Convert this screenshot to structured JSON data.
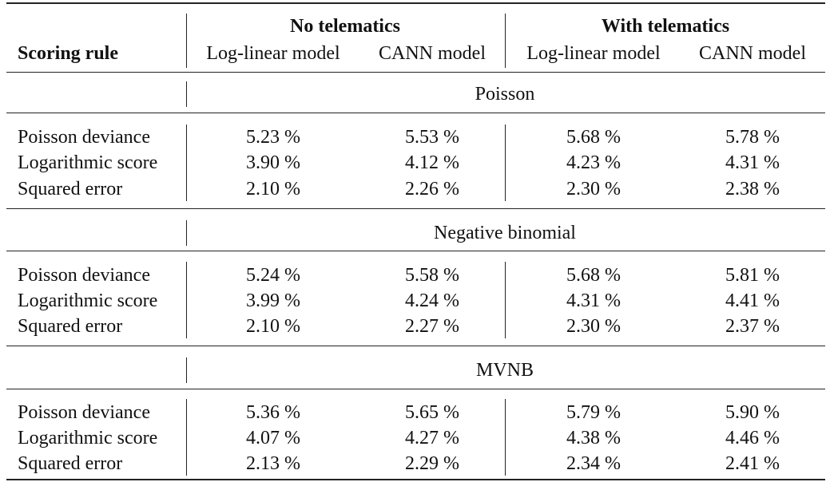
{
  "header": {
    "scoring_rule": "Scoring rule",
    "group_no": "No telematics",
    "group_with": "With telematics",
    "col1": "Log-linear model",
    "col2": "CANN model",
    "col3": "Log-linear model",
    "col4": "CANN model"
  },
  "sections": [
    {
      "title": "Poisson",
      "rows": [
        {
          "label": "Poisson deviance",
          "v": [
            "5.23 %",
            "5.53 %",
            "5.68 %",
            "5.78 %"
          ]
        },
        {
          "label": "Logarithmic score",
          "v": [
            "3.90 %",
            "4.12 %",
            "4.23 %",
            "4.31 %"
          ]
        },
        {
          "label": "Squared error",
          "v": [
            "2.10 %",
            "2.26 %",
            "2.30 %",
            "2.38 %"
          ]
        }
      ]
    },
    {
      "title": "Negative binomial",
      "rows": [
        {
          "label": "Poisson deviance",
          "v": [
            "5.24 %",
            "5.58 %",
            "5.68 %",
            "5.81 %"
          ]
        },
        {
          "label": "Logarithmic score",
          "v": [
            "3.99 %",
            "4.24 %",
            "4.31 %",
            "4.41 %"
          ]
        },
        {
          "label": "Squared error",
          "v": [
            "2.10 %",
            "2.27 %",
            "2.30 %",
            "2.37 %"
          ]
        }
      ]
    },
    {
      "title": "MVNB",
      "rows": [
        {
          "label": "Poisson deviance",
          "v": [
            "5.36 %",
            "5.65 %",
            "5.79 %",
            "5.90 %"
          ]
        },
        {
          "label": "Logarithmic score",
          "v": [
            "4.07 %",
            "4.27 %",
            "4.38 %",
            "4.46 %"
          ]
        },
        {
          "label": "Squared error",
          "v": [
            "2.13 %",
            "2.29 %",
            "2.34 %",
            "2.41 %"
          ]
        }
      ]
    }
  ]
}
